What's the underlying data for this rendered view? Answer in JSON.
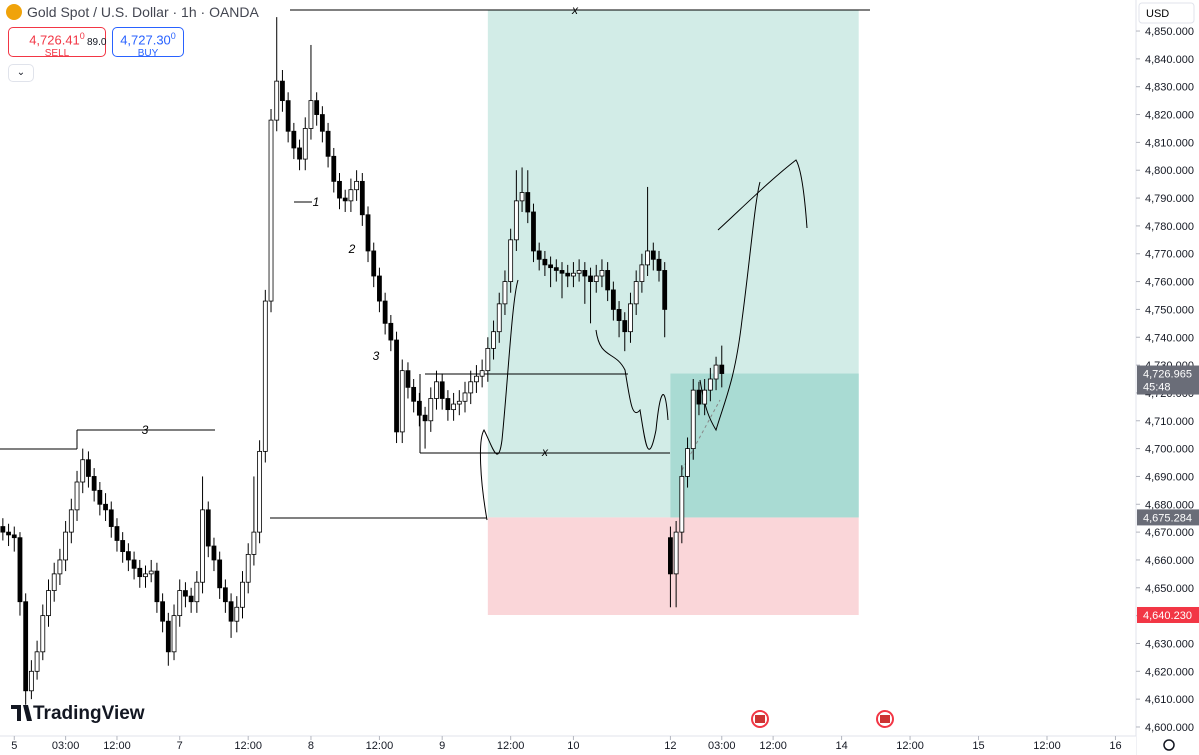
{
  "header": {
    "symbol": "Gold Spot / U.S. Dollar · 1h · OANDA",
    "sell_price": "4,726.41",
    "sell_sup": "0",
    "sell_label": "SELL",
    "spread": "89.0",
    "buy_price": "4,727.30",
    "buy_sup": "0",
    "buy_label": "BUY",
    "currency": "USD",
    "branding": "TradingView"
  },
  "annotations": [
    "1",
    "2",
    "3",
    "3",
    "x",
    "x"
  ],
  "chart_data": {
    "type": "candlestick",
    "title": "Gold Spot / U.S. Dollar · 1h · OANDA",
    "x": [
      0,
      1,
      2,
      3,
      4,
      5,
      6,
      7,
      8,
      9,
      10,
      11,
      12,
      13,
      14,
      15,
      16,
      17,
      18,
      19,
      20,
      21,
      22,
      23,
      24,
      25,
      26,
      27,
      28,
      29,
      30,
      31,
      32,
      33,
      34,
      35,
      36,
      37,
      38,
      39,
      40,
      41,
      42,
      43,
      44,
      45,
      46,
      47,
      48,
      49,
      50,
      51,
      52,
      53,
      54,
      55,
      56,
      57,
      58,
      59,
      60,
      61,
      62,
      63,
      64,
      65,
      66,
      67,
      68,
      69,
      70,
      71,
      72,
      73,
      74,
      75,
      76,
      77,
      78,
      79,
      80,
      81,
      82,
      83,
      84,
      85,
      86,
      87,
      88,
      89,
      90,
      91,
      92,
      93,
      94,
      95,
      96,
      97,
      98,
      99,
      100,
      101,
      102,
      103,
      104,
      105,
      106,
      107,
      108,
      109,
      110,
      111,
      112,
      113,
      114,
      115,
      116,
      117,
      118,
      119,
      120,
      121,
      122,
      123,
      124,
      125,
      126
    ],
    "open": [
      4672,
      4670,
      4669,
      4668,
      4645,
      4613,
      4620,
      4627,
      4640,
      4649,
      4655,
      4660,
      4670,
      4678,
      4688,
      4696,
      4690,
      4685,
      4680,
      4678,
      4672,
      4667,
      4663,
      4660,
      4657,
      4654,
      4655,
      4656,
      4645,
      4638,
      4627,
      4640,
      4649,
      4647,
      4645,
      4652,
      4678,
      4665,
      4660,
      4650,
      4645,
      4638,
      4643,
      4652,
      4662,
      4670,
      4699,
      4753,
      4818,
      4832,
      4825,
      4814,
      4808,
      4804,
      4815,
      4825,
      4820,
      4814,
      4805,
      4796,
      4790,
      4789,
      4793,
      4796,
      4784,
      4771,
      4762,
      4753,
      4745,
      4739,
      4706,
      4728,
      4722,
      4717,
      4712,
      4710,
      4718,
      4724,
      4718,
      4714,
      4716,
      4717,
      4720,
      4724,
      4726,
      4728,
      4736,
      4742,
      4752,
      4760,
      4775,
      4789,
      4792,
      4785,
      4771,
      4768,
      4766,
      4765,
      4764,
      4763,
      4762,
      4763,
      4764,
      4762,
      4760,
      4762,
      4764,
      4757,
      4750,
      4746,
      4742,
      4752,
      4760,
      4766,
      4771,
      4768,
      4764,
      4668,
      4655,
      4670,
      4690,
      4700,
      4721,
      4716,
      4721,
      4725,
      4730
    ],
    "high": [
      4675,
      4673,
      4672,
      4670,
      4648,
      4624,
      4631,
      4644,
      4653,
      4659,
      4664,
      4674,
      4682,
      4692,
      4700,
      4699,
      4693,
      4688,
      4684,
      4681,
      4675,
      4670,
      4666,
      4663,
      4660,
      4658,
      4660,
      4659,
      4648,
      4641,
      4644,
      4653,
      4652,
      4650,
      4656,
      4690,
      4681,
      4668,
      4663,
      4653,
      4648,
      4647,
      4656,
      4666,
      4690,
      4703,
      4757,
      4822,
      4855,
      4836,
      4828,
      4817,
      4811,
      4819,
      4845,
      4828,
      4823,
      4817,
      4808,
      4799,
      4793,
      4797,
      4800,
      4799,
      4787,
      4774,
      4765,
      4756,
      4748,
      4742,
      4732,
      4731,
      4725,
      4720,
      4715,
      4722,
      4728,
      4727,
      4721,
      4720,
      4721,
      4724,
      4728,
      4730,
      4732,
      4740,
      4746,
      4756,
      4764,
      4779,
      4800,
      4801,
      4800,
      4788,
      4774,
      4771,
      4769,
      4768,
      4767,
      4766,
      4767,
      4768,
      4767,
      4765,
      4766,
      4768,
      4767,
      4760,
      4753,
      4749,
      4756,
      4764,
      4770,
      4794,
      4774,
      4771,
      4767,
      4672,
      4674,
      4694,
      4704,
      4725,
      4724,
      4725,
      4729,
      4733,
      4737
    ],
    "low": [
      4667,
      4665,
      4663,
      4640,
      4608,
      4610,
      4617,
      4624,
      4636,
      4645,
      4651,
      4656,
      4666,
      4674,
      4684,
      4686,
      4681,
      4676,
      4674,
      4668,
      4663,
      4659,
      4656,
      4653,
      4650,
      4650,
      4652,
      4641,
      4634,
      4622,
      4624,
      4636,
      4643,
      4641,
      4641,
      4648,
      4661,
      4656,
      4646,
      4641,
      4632,
      4634,
      4639,
      4648,
      4658,
      4666,
      4695,
      4749,
      4814,
      4821,
      4810,
      4804,
      4800,
      4800,
      4811,
      4816,
      4810,
      4801,
      4792,
      4786,
      4785,
      4785,
      4789,
      4780,
      4767,
      4758,
      4749,
      4741,
      4735,
      4702,
      4702,
      4718,
      4713,
      4708,
      4700,
      4706,
      4714,
      4714,
      4710,
      4710,
      4712,
      4713,
      4716,
      4720,
      4722,
      4724,
      4732,
      4738,
      4748,
      4756,
      4771,
      4785,
      4781,
      4767,
      4764,
      4762,
      4758,
      4760,
      4754,
      4758,
      4758,
      4760,
      4752,
      4745,
      4756,
      4758,
      4753,
      4746,
      4740,
      4735,
      4738,
      4748,
      4756,
      4762,
      4764,
      4760,
      4740,
      4643,
      4643,
      4666,
      4686,
      4696,
      4712,
      4712,
      4717,
      4721,
      4722
    ],
    "close": [
      4670,
      4669,
      4668,
      4645,
      4613,
      4620,
      4627,
      4640,
      4649,
      4655,
      4660,
      4670,
      4678,
      4688,
      4696,
      4690,
      4685,
      4680,
      4678,
      4672,
      4667,
      4663,
      4660,
      4657,
      4654,
      4655,
      4656,
      4645,
      4638,
      4627,
      4640,
      4649,
      4647,
      4645,
      4652,
      4678,
      4665,
      4660,
      4650,
      4645,
      4638,
      4643,
      4652,
      4662,
      4670,
      4699,
      4753,
      4818,
      4832,
      4825,
      4814,
      4808,
      4804,
      4815,
      4825,
      4820,
      4814,
      4805,
      4796,
      4790,
      4789,
      4793,
      4796,
      4784,
      4771,
      4762,
      4753,
      4745,
      4739,
      4706,
      4728,
      4722,
      4717,
      4712,
      4710,
      4718,
      4724,
      4718,
      4714,
      4716,
      4717,
      4720,
      4724,
      4726,
      4728,
      4736,
      4742,
      4752,
      4760,
      4775,
      4789,
      4792,
      4785,
      4771,
      4768,
      4766,
      4765,
      4764,
      4763,
      4762,
      4763,
      4764,
      4762,
      4760,
      4762,
      4764,
      4757,
      4750,
      4746,
      4742,
      4752,
      4760,
      4766,
      4771,
      4768,
      4764,
      4750,
      4655,
      4670,
      4690,
      4700,
      4721,
      4716,
      4721,
      4725,
      4730,
      4726.965
    ],
    "up_color": "#ffffff",
    "down_color": "#000000",
    "wick_color": "#000000",
    "xlim": [
      -0.5,
      198.6
    ],
    "ylim": [
      4596.76,
      4861.15
    ],
    "xticks": [
      {
        "value": 2,
        "label": "5"
      },
      {
        "value": 11,
        "label": "03:00"
      },
      {
        "value": 20,
        "label": "12:00"
      },
      {
        "value": 31,
        "label": "7"
      },
      {
        "value": 43,
        "label": "12:00"
      },
      {
        "value": 54,
        "label": "8"
      },
      {
        "value": 66,
        "label": "12:00"
      },
      {
        "value": 77,
        "label": "9"
      },
      {
        "value": 89,
        "label": "12:00"
      },
      {
        "value": 100,
        "label": "10"
      },
      {
        "value": 117,
        "label": "12"
      },
      {
        "value": 126,
        "label": "03:00"
      },
      {
        "value": 135,
        "label": "12:00"
      },
      {
        "value": 147,
        "label": "14"
      },
      {
        "value": 159,
        "label": "12:00"
      },
      {
        "value": 171,
        "label": "15"
      },
      {
        "value": 183,
        "label": "12:00"
      },
      {
        "value": 195,
        "label": "16"
      }
    ],
    "yticks": [
      {
        "value": 4600,
        "label": "4,600.000"
      },
      {
        "value": 4610,
        "label": "4,610.000"
      },
      {
        "value": 4620,
        "label": "4,620.000"
      },
      {
        "value": 4630,
        "label": "4,630.000"
      },
      {
        "value": 4640,
        "label": "4,640.000"
      },
      {
        "value": 4650,
        "label": "4,650.000"
      },
      {
        "value": 4660,
        "label": "4,660.000"
      },
      {
        "value": 4670,
        "label": "4,670.000"
      },
      {
        "value": 4680,
        "label": "4,680.000"
      },
      {
        "value": 4690,
        "label": "4,690.000"
      },
      {
        "value": 4700,
        "label": "4,700.000"
      },
      {
        "value": 4710,
        "label": "4,710.000"
      },
      {
        "value": 4720,
        "label": "4,720.000"
      },
      {
        "value": 4730,
        "label": "4,730.000"
      },
      {
        "value": 4740,
        "label": "4,740.000"
      },
      {
        "value": 4750,
        "label": "4,750.000"
      },
      {
        "value": 4760,
        "label": "4,760.000"
      },
      {
        "value": 4770,
        "label": "4,770.000"
      },
      {
        "value": 4780,
        "label": "4,780.000"
      },
      {
        "value": 4790,
        "label": "4,790.000"
      },
      {
        "value": 4800,
        "label": "4,800.000"
      },
      {
        "value": 4810,
        "label": "4,810.000"
      },
      {
        "value": 4820,
        "label": "4,820.000"
      },
      {
        "value": 4830,
        "label": "4,830.000"
      },
      {
        "value": 4840,
        "label": "4,840.000"
      },
      {
        "value": 4850,
        "label": "4,850.000"
      }
    ],
    "position": {
      "entry": 4675.284,
      "stop": 4640.23,
      "target": 4857.5,
      "start": 85,
      "end": 150,
      "profit_color": "#d2ece7",
      "loss_color": "#fad6d9",
      "open_color": "#a9dbd3"
    },
    "last_price": {
      "value": 4726.965,
      "label": "4,726.965",
      "countdown": "45:48",
      "color": "#6a6d78"
    },
    "price_labels": [
      {
        "value": 4675.284,
        "label": "4,675.284",
        "color": "#6a6d78"
      },
      {
        "value": 4640.23,
        "label": "4,640.230",
        "color": "#f23645"
      }
    ]
  }
}
